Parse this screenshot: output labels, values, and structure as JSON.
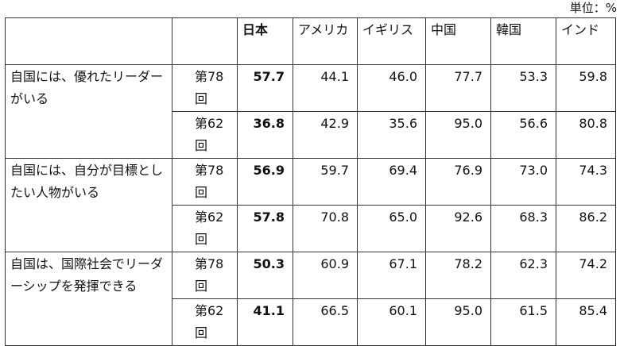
{
  "unit_label": "単位：%",
  "headers": [
    "日本",
    "アメリカ",
    "イギリス",
    "中国",
    "韓国",
    "インド"
  ],
  "rows": [
    {
      "item": "自国には、優れたリーダーがいる",
      "rounds": [
        {
          "label": "第78回",
          "values": [
            "57.7",
            "44.1",
            "46.0",
            "77.7",
            "53.3",
            "59.8"
          ]
        },
        {
          "label": "第62回",
          "values": [
            "36.8",
            "42.9",
            "35.6",
            "95.0",
            "56.6",
            "80.8"
          ]
        }
      ]
    },
    {
      "item": "自国には、自分が目標としたい人物がいる",
      "rounds": [
        {
          "label": "第78回",
          "values": [
            "56.9",
            "59.7",
            "69.4",
            "76.9",
            "73.0",
            "74.3"
          ]
        },
        {
          "label": "第62回",
          "values": [
            "57.8",
            "70.8",
            "65.0",
            "92.6",
            "68.3",
            "86.2"
          ]
        }
      ]
    },
    {
      "item": "自国は、国際社会でリーダーシップを発揮できる",
      "rounds": [
        {
          "label": "第78回",
          "values": [
            "50.3",
            "60.9",
            "67.1",
            "78.2",
            "62.3",
            "74.2"
          ]
        },
        {
          "label": "第62回",
          "values": [
            "41.1",
            "66.5",
            "60.1",
            "95.0",
            "61.5",
            "85.4"
          ]
        }
      ]
    }
  ]
}
